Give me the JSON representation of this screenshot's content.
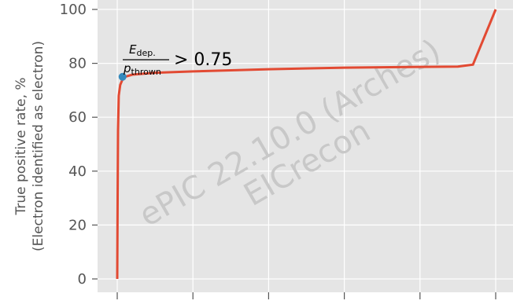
{
  "chart_data": {
    "type": "line",
    "title": "",
    "xlabel": "",
    "ylabel": "True positive rate, %",
    "ylabel2": "(Electron identified as electron)",
    "ylim": [
      0,
      100
    ],
    "yticks": [
      "0",
      "20",
      "40",
      "60",
      "80",
      "100"
    ],
    "xlim": [
      0,
      5
    ],
    "xticks": [
      0,
      1,
      2,
      3,
      4,
      5
    ],
    "grid": true,
    "colors": {
      "line": "#e24a33",
      "marker": "#348abd",
      "background": "#e5e5e5",
      "grid": "#ffffff"
    },
    "series": [
      {
        "x": [
          0,
          0.005,
          0.01,
          0.02,
          0.04,
          0.07,
          0.1,
          0.2,
          0.5,
          1.0,
          2.0,
          3.0,
          4.0,
          4.5,
          4.7,
          5.0
        ],
        "y": [
          0,
          30,
          55,
          68,
          72,
          74,
          75,
          75.8,
          76.5,
          77,
          77.8,
          78.4,
          78.7,
          78.8,
          79.5,
          100
        ]
      }
    ],
    "marker_point": {
      "x": 0.07,
      "y": 75
    },
    "annotation": {
      "numerator": "E",
      "numerator_sub": "dep.",
      "denominator": "p",
      "denominator_sub": "thrown",
      "relation": "> 0.75"
    },
    "watermark": {
      "line1": "ePIC 22.10.0 (Arches)",
      "line2": "EICrecon"
    }
  }
}
